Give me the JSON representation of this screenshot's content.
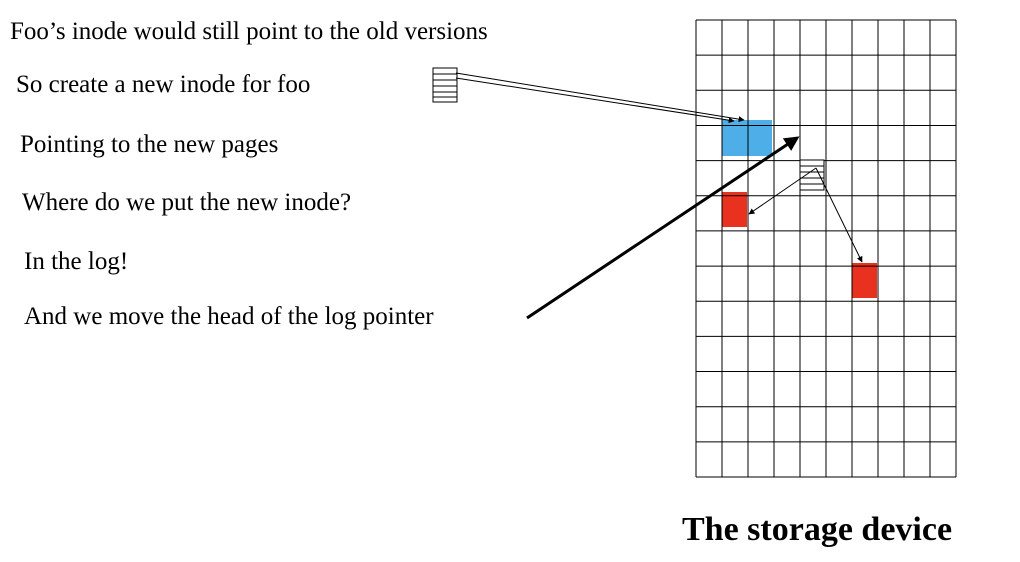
{
  "lines": [
    "Foo’s inode would still point to the old versions",
    "So create a new inode for foo",
    "Pointing to the new pages",
    "Where do we put the new inode?",
    "In the log!",
    "And we move the head of the log pointer"
  ],
  "caption": "The storage device",
  "colors": {
    "blue_page": "#4eaee8",
    "red_page": "#e8321f",
    "grid_line": "#000000"
  },
  "icons": {
    "inode": "inode-icon"
  }
}
